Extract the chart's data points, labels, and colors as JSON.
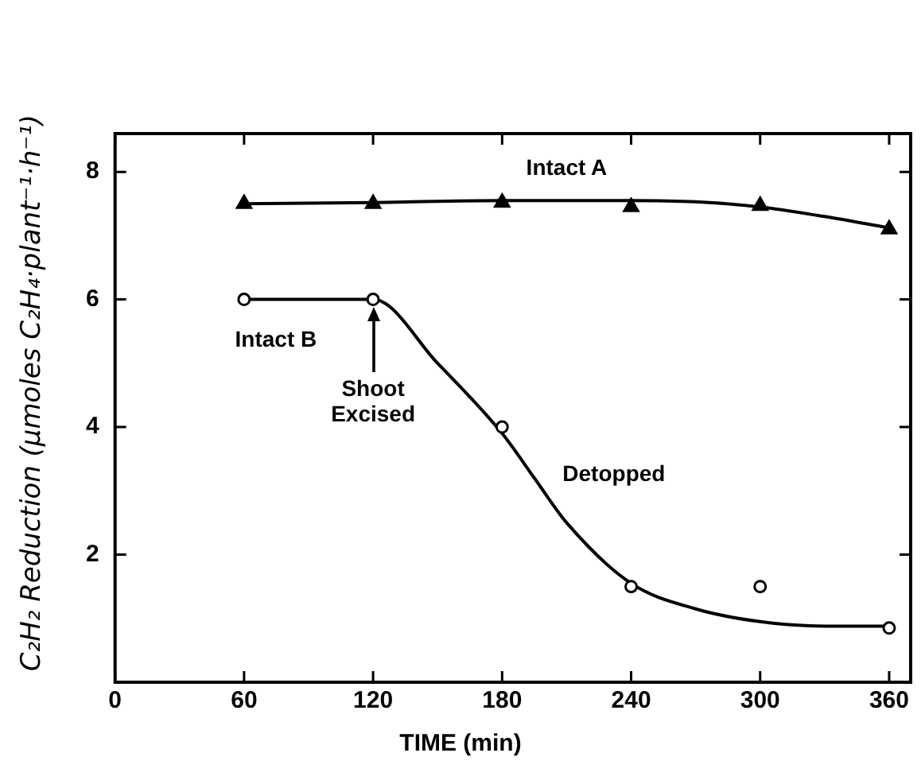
{
  "chart_data": {
    "type": "scatter",
    "xlabel": "TIME (min)",
    "ylabel": "C₂H₂ Reduction (μmoles C₂H₄·plant⁻¹·h⁻¹)",
    "xlim": [
      0,
      370
    ],
    "xticks": [
      0,
      60,
      120,
      180,
      240,
      300,
      360
    ],
    "ylim": [
      0,
      8.6
    ],
    "yticks": [
      2,
      4,
      6,
      8
    ],
    "grid": false,
    "legend": false,
    "series": [
      {
        "name": "Intact A",
        "type": "scatter",
        "marker": "triangle",
        "color": "#000000",
        "x": [
          60,
          120,
          180,
          240,
          300,
          360
        ],
        "values": [
          7.5,
          7.5,
          7.52,
          7.45,
          7.47,
          7.1
        ]
      },
      {
        "type": "line",
        "marker": "none",
        "line_style": "solid",
        "color": "#000000",
        "x": [
          60,
          120,
          180,
          240,
          270,
          300,
          330,
          360
        ],
        "values": [
          7.5,
          7.52,
          7.55,
          7.55,
          7.53,
          7.45,
          7.3,
          7.12
        ]
      },
      {
        "name": "Intact B",
        "type": "scatter",
        "marker": "circle",
        "color": "#000000",
        "x": [
          60,
          120,
          180,
          240,
          300,
          360
        ],
        "values": [
          6,
          6,
          4,
          1.5,
          1.5,
          0.85
        ]
      },
      {
        "type": "line",
        "marker": "none",
        "line_style": "solid",
        "color": "#000000",
        "x": [
          60,
          120,
          150,
          180,
          195,
          210,
          240,
          270,
          300,
          330,
          360
        ],
        "values": [
          6,
          6,
          5.0,
          3.9,
          3.2,
          2.5,
          1.55,
          1.15,
          0.95,
          0.88,
          0.88
        ]
      }
    ],
    "annotations": [
      {
        "text": "Shoot Excised",
        "x": 120,
        "y": 6
      },
      "Detopped"
    ]
  }
}
